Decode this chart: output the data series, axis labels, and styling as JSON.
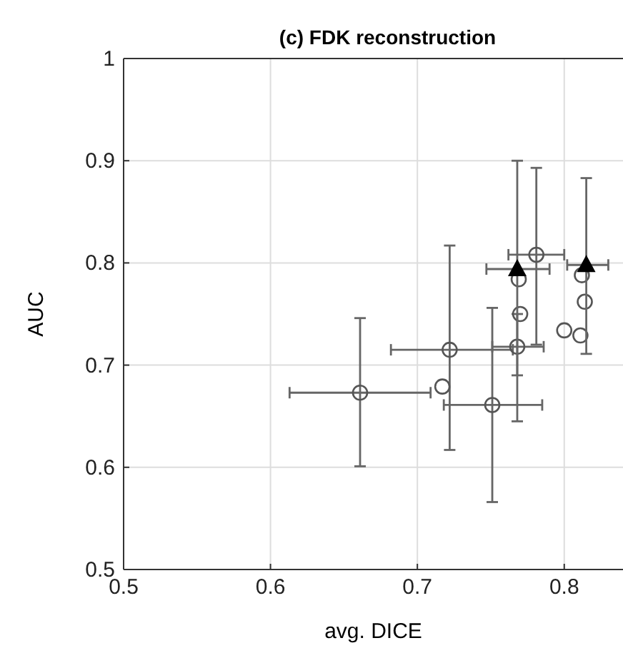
{
  "chart_data": {
    "type": "scatter",
    "title": "(c) FDK reconstruction",
    "xlabel": "avg. DICE",
    "ylabel": "AUC",
    "xlim": [
      0.5,
      0.84
    ],
    "ylim": [
      0.5,
      1
    ],
    "xticks": [
      0.5,
      0.6,
      0.7,
      0.8
    ],
    "yticks": [
      0.5,
      0.6,
      0.7,
      0.8,
      0.9,
      1
    ],
    "grid": true,
    "series": [
      {
        "color": "#555555",
        "marker": "circle",
        "x": [
          0.661,
          0.722,
          0.768,
          0.781,
          0.751
        ],
        "values": [
          0.673,
          0.715,
          0.718,
          0.808,
          0.661
        ],
        "errors": [
          [
            0.601,
            0.746
          ],
          [
            0.617,
            0.817
          ],
          [
            0.69,
            0.75
          ],
          [
            0.72,
            0.893
          ],
          [
            0.566,
            0.756
          ]
        ],
        "xerrors": [
          [
            0.613,
            0.709
          ],
          [
            0.682,
            0.765
          ],
          [
            0.751,
            0.786
          ],
          [
            0.762,
            0.8
          ],
          [
            0.718,
            0.785
          ]
        ]
      },
      {
        "color": "#555555",
        "marker": "circle",
        "x": [
          0.769,
          0.77,
          0.717,
          0.812,
          0.814,
          0.8,
          0.811
        ],
        "values": [
          0.784,
          0.75,
          0.679,
          0.788,
          0.762,
          0.734,
          0.729
        ]
      },
      {
        "color": "#000000",
        "marker": "triangle",
        "x": [
          0.768,
          0.815
        ],
        "values": [
          0.794,
          0.798
        ],
        "errors": [
          [
            0.645,
            0.9
          ],
          [
            0.711,
            0.883
          ]
        ],
        "xerrors": [
          [
            0.747,
            0.79
          ],
          [
            0.802,
            0.83
          ]
        ]
      }
    ]
  }
}
